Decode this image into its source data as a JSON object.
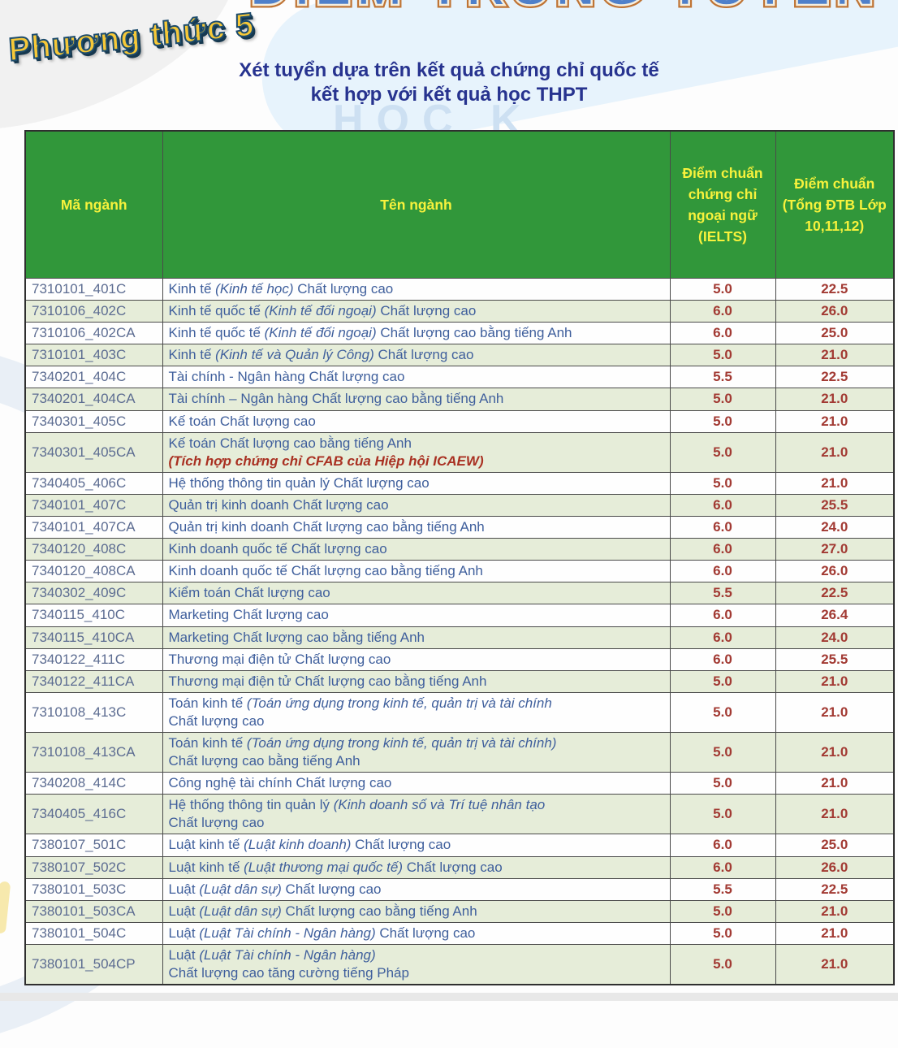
{
  "header": {
    "main_title": "ĐIỂM TRÚNG TUYỂN",
    "badge": "Phương thức 5",
    "subtitle_line1": "Xét tuyển dựa trên kết quả chứng chỉ quốc tế",
    "subtitle_line2": "kết hợp với kết quả học THPT"
  },
  "watermark": {
    "text": "HỌC K"
  },
  "colors": {
    "header_bg": "#31973a",
    "header_text": "#f7f23c",
    "row_alt_bg": "#e6edd9",
    "row_bg": "#fefefe",
    "code_text": "#5c6c91",
    "name_text": "#3f5f9c",
    "score_text": "#a23a33",
    "note_text": "#a93122",
    "subtitle_text": "#27338f",
    "border": "#4a4a4a"
  },
  "table": {
    "columns": [
      "Mã ngành",
      "Tên ngành",
      "Điểm chuẩn chứng chỉ ngoại ngữ (IELTS)",
      "Điểm chuẩn (Tổng ĐTB Lớp 10,11,12)"
    ],
    "rows": [
      {
        "code": "7310101_401C",
        "name_lines": [
          [
            {
              "text": "Kinh tế "
            },
            {
              "text": "(Kinh tế học)",
              "italic": true
            },
            {
              "text": " Chất lượng cao"
            }
          ]
        ],
        "ielts": "5.0",
        "gpa": "22.5"
      },
      {
        "code": "7310106_402C",
        "name_lines": [
          [
            {
              "text": "Kinh tế quốc tế "
            },
            {
              "text": "(Kinh tế đối ngoại)",
              "italic": true
            },
            {
              "text": " Chất lượng cao"
            }
          ]
        ],
        "ielts": "6.0",
        "gpa": "26.0"
      },
      {
        "code": "7310106_402CA",
        "name_lines": [
          [
            {
              "text": "Kinh tế quốc tế "
            },
            {
              "text": "(Kinh tế đối ngoại)",
              "italic": true
            },
            {
              "text": " Chất lượng cao bằng tiếng Anh"
            }
          ]
        ],
        "ielts": "6.0",
        "gpa": "25.0"
      },
      {
        "code": "7310101_403C",
        "name_lines": [
          [
            {
              "text": "Kinh tế "
            },
            {
              "text": "(Kinh tế và Quản lý Công)",
              "italic": true
            },
            {
              "text": " Chất lượng cao"
            }
          ]
        ],
        "ielts": "5.0",
        "gpa": "21.0"
      },
      {
        "code": "7340201_404C",
        "name_lines": [
          [
            {
              "text": "Tài chính - Ngân hàng Chất lượng cao"
            }
          ]
        ],
        "ielts": "5.5",
        "gpa": "22.5"
      },
      {
        "code": "7340201_404CA",
        "name_lines": [
          [
            {
              "text": "Tài chính – Ngân hàng Chất lượng cao bằng tiếng Anh"
            }
          ]
        ],
        "ielts": "5.0",
        "gpa": "21.0"
      },
      {
        "code": "7340301_405C",
        "name_lines": [
          [
            {
              "text": "Kế toán Chất lượng cao"
            }
          ]
        ],
        "ielts": "5.0",
        "gpa": "21.0"
      },
      {
        "code": "7340301_405CA",
        "name_lines": [
          [
            {
              "text": "Kế toán Chất lượng cao bằng tiếng Anh"
            }
          ],
          [
            {
              "text": "(Tích hợp chứng chỉ CFAB của Hiệp hội ICAEW)",
              "note": true
            }
          ]
        ],
        "ielts": "5.0",
        "gpa": "21.0"
      },
      {
        "code": "7340405_406C",
        "name_lines": [
          [
            {
              "text": "Hệ thống thông tin quản lý Chất lượng cao"
            }
          ]
        ],
        "ielts": "5.0",
        "gpa": "21.0"
      },
      {
        "code": "7340101_407C",
        "name_lines": [
          [
            {
              "text": "Quản trị kinh doanh Chất lượng cao"
            }
          ]
        ],
        "ielts": "6.0",
        "gpa": "25.5"
      },
      {
        "code": "7340101_407CA",
        "name_lines": [
          [
            {
              "text": "Quản trị kinh doanh Chất lượng cao bằng tiếng Anh"
            }
          ]
        ],
        "ielts": "6.0",
        "gpa": "24.0"
      },
      {
        "code": "7340120_408C",
        "name_lines": [
          [
            {
              "text": "Kinh doanh quốc tế Chất lượng cao"
            }
          ]
        ],
        "ielts": "6.0",
        "gpa": "27.0"
      },
      {
        "code": "7340120_408CA",
        "name_lines": [
          [
            {
              "text": "Kinh doanh quốc tế Chất lượng cao bằng tiếng Anh"
            }
          ]
        ],
        "ielts": "6.0",
        "gpa": "26.0"
      },
      {
        "code": "7340302_409C",
        "name_lines": [
          [
            {
              "text": "Kiểm toán Chất lượng cao"
            }
          ]
        ],
        "ielts": "5.5",
        "gpa": "22.5"
      },
      {
        "code": "7340115_410C",
        "name_lines": [
          [
            {
              "text": "Marketing Chất lượng cao"
            }
          ]
        ],
        "ielts": "6.0",
        "gpa": "26.4"
      },
      {
        "code": "7340115_410CA",
        "name_lines": [
          [
            {
              "text": "Marketing Chất lượng cao bằng tiếng Anh"
            }
          ]
        ],
        "ielts": "6.0",
        "gpa": "24.0"
      },
      {
        "code": "7340122_411C",
        "name_lines": [
          [
            {
              "text": "Thương mại điện tử Chất lượng cao"
            }
          ]
        ],
        "ielts": "6.0",
        "gpa": "25.5"
      },
      {
        "code": "7340122_411CA",
        "name_lines": [
          [
            {
              "text": "Thương mại điện tử Chất lượng cao bằng tiếng Anh"
            }
          ]
        ],
        "ielts": "5.0",
        "gpa": "21.0"
      },
      {
        "code": "7310108_413C",
        "name_lines": [
          [
            {
              "text": "Toán kinh tế "
            },
            {
              "text": "(Toán ứng dụng trong kinh tế, quản trị và tài chính",
              "italic": true
            }
          ],
          [
            {
              "text": "Chất lượng cao"
            }
          ]
        ],
        "ielts": "5.0",
        "gpa": "21.0"
      },
      {
        "code": "7310108_413CA",
        "name_lines": [
          [
            {
              "text": "Toán kinh tế "
            },
            {
              "text": "(Toán ứng dụng trong kinh tế, quản trị và tài chính)",
              "italic": true
            }
          ],
          [
            {
              "text": "Chất lượng cao bằng tiếng Anh"
            }
          ]
        ],
        "ielts": "5.0",
        "gpa": "21.0"
      },
      {
        "code": "7340208_414C",
        "name_lines": [
          [
            {
              "text": "Công nghệ tài chính Chất lượng cao"
            }
          ]
        ],
        "ielts": "5.0",
        "gpa": "21.0"
      },
      {
        "code": "7340405_416C",
        "name_lines": [
          [
            {
              "text": "Hệ thống thông tin quản lý "
            },
            {
              "text": "(Kinh doanh số và Trí tuệ nhân tạo",
              "italic": true
            }
          ],
          [
            {
              "text": "Chất lượng cao"
            }
          ]
        ],
        "ielts": "5.0",
        "gpa": "21.0"
      },
      {
        "code": "7380107_501C",
        "name_lines": [
          [
            {
              "text": "Luật kinh tế "
            },
            {
              "text": "(Luật kinh doanh)",
              "italic": true
            },
            {
              "text": " Chất lượng cao"
            }
          ]
        ],
        "ielts": "6.0",
        "gpa": "25.0"
      },
      {
        "code": "7380107_502C",
        "name_lines": [
          [
            {
              "text": "Luật kinh tế "
            },
            {
              "text": "(Luật thương mại quốc tế)",
              "italic": true
            },
            {
              "text": " Chất lượng cao"
            }
          ]
        ],
        "ielts": "6.0",
        "gpa": "26.0"
      },
      {
        "code": "7380101_503C",
        "name_lines": [
          [
            {
              "text": "Luật "
            },
            {
              "text": "(Luật dân sự)",
              "italic": true
            },
            {
              "text": " Chất lượng cao"
            }
          ]
        ],
        "ielts": "5.5",
        "gpa": "22.5"
      },
      {
        "code": "7380101_503CA",
        "name_lines": [
          [
            {
              "text": "Luật "
            },
            {
              "text": "(Luật dân sự)",
              "italic": true
            },
            {
              "text": " Chất lượng cao bằng tiếng Anh"
            }
          ]
        ],
        "ielts": "5.0",
        "gpa": "21.0"
      },
      {
        "code": "7380101_504C",
        "name_lines": [
          [
            {
              "text": "Luật "
            },
            {
              "text": "(Luật Tài chính - Ngân hàng)",
              "italic": true
            },
            {
              "text": " Chất lượng cao"
            }
          ]
        ],
        "ielts": "5.0",
        "gpa": "21.0"
      },
      {
        "code": "7380101_504CP",
        "name_lines": [
          [
            {
              "text": "Luật "
            },
            {
              "text": "(Luật Tài chính - Ngân hàng)",
              "italic": true
            }
          ],
          [
            {
              "text": "Chất lượng cao tăng cường tiếng Pháp"
            }
          ]
        ],
        "ielts": "5.0",
        "gpa": "21.0"
      }
    ]
  }
}
